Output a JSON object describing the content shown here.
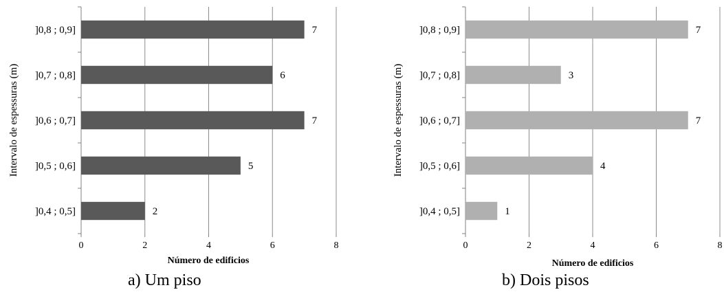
{
  "chart_data": [
    {
      "type": "bar",
      "orientation": "horizontal",
      "caption": "a) Um piso",
      "xlabel": "Número de edificios",
      "ylabel": "Intervalo de espessuras (m)",
      "categories": [
        "]0,4 ; 0,5]",
        "]0,5 ; 0,6]",
        "]0,6 ; 0,7]",
        "]0,7 ; 0,8]",
        "]0,8 ; 0,9]"
      ],
      "values": [
        2,
        5,
        7,
        6,
        7
      ],
      "xlim": [
        0,
        8
      ],
      "xticks": [
        "0",
        "2",
        "4",
        "6",
        "8"
      ],
      "grid": "vertical",
      "bar_color": "#595959",
      "data_labels": true
    },
    {
      "type": "bar",
      "orientation": "horizontal",
      "caption": "b) Dois pisos",
      "xlabel": "Número de edificios",
      "ylabel": "Intervalo de espessuras (m)",
      "categories": [
        "]0,4 ; 0,5]",
        "]0,5 ; 0,6]",
        "]0,6 ; 0,7]",
        "]0,7 ; 0,8]",
        "]0,8 ; 0,9]"
      ],
      "values": [
        1,
        4,
        7,
        3,
        7
      ],
      "xlim": [
        0,
        8
      ],
      "xticks": [
        "0",
        "2",
        "4",
        "6",
        "8"
      ],
      "grid": "vertical",
      "bar_color": "#b0b0b0",
      "data_labels": true
    }
  ]
}
